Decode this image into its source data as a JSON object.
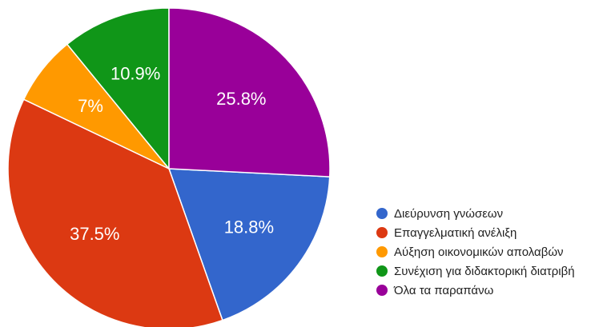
{
  "chart_data": {
    "type": "pie",
    "categories": [
      "Διεύρυνση γνώσεων",
      "Επαγγελματική ανέλιξη",
      "Αύξηση οικονομικών απολαβών",
      "Συνέχιση για διδακτορική διατριβή",
      "Όλα τα παραπάνω"
    ],
    "values": [
      18.8,
      37.5,
      7,
      10.9,
      25.8
    ],
    "value_labels": [
      "18.8%",
      "37.5%",
      "7%",
      "10.9%",
      "25.8%"
    ],
    "colors": [
      "#3366cc",
      "#dc3912",
      "#ff9900",
      "#109618",
      "#990099"
    ],
    "legend": "right"
  }
}
